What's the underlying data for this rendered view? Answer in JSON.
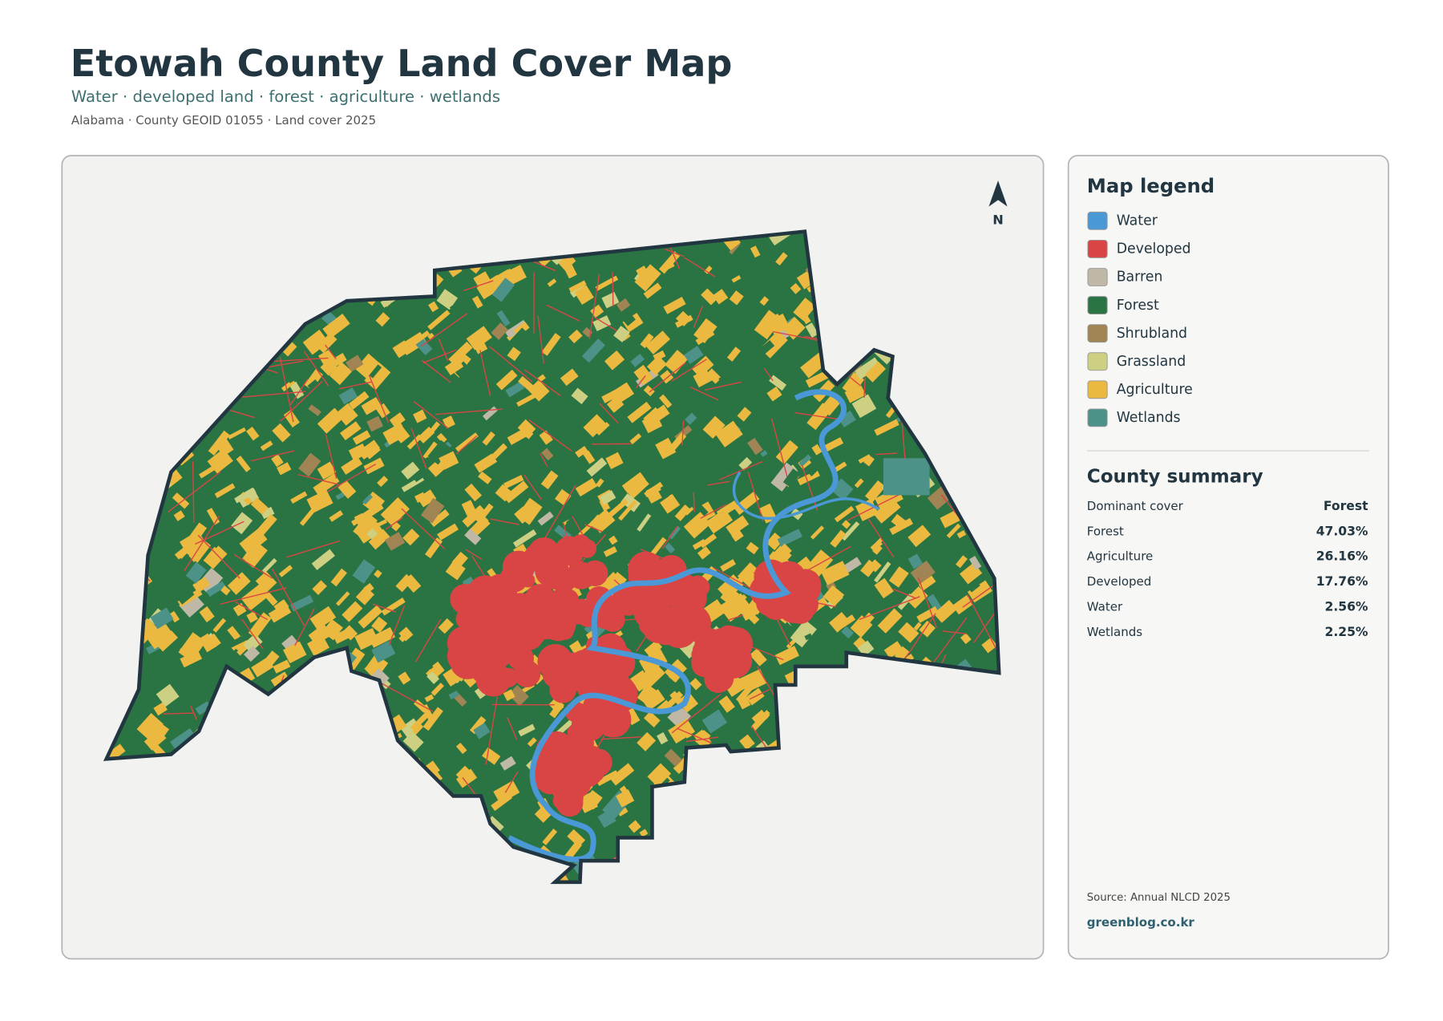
{
  "header": {
    "title": "Etowah County Land Cover Map",
    "subtitle": "Water · developed land · forest · agriculture · wetlands",
    "meta": "Alabama · County GEOID 01055 · Land cover 2025"
  },
  "map": {
    "north": "N"
  },
  "legend": {
    "title": "Map legend",
    "items": [
      {
        "label": "Water",
        "color": "#4a98d6"
      },
      {
        "label": "Developed",
        "color": "#d94545"
      },
      {
        "label": "Barren",
        "color": "#bfb8a6"
      },
      {
        "label": "Forest",
        "color": "#2a7443"
      },
      {
        "label": "Shrubland",
        "color": "#a08453"
      },
      {
        "label": "Grassland",
        "color": "#cdd083"
      },
      {
        "label": "Agriculture",
        "color": "#ebb93f"
      },
      {
        "label": "Wetlands",
        "color": "#4d9289"
      }
    ]
  },
  "summary": {
    "title": "County summary",
    "rows": [
      [
        "Dominant cover",
        "Forest"
      ],
      [
        "Forest",
        "47.03%"
      ],
      [
        "Agriculture",
        "26.16%"
      ],
      [
        "Developed",
        "17.76%"
      ],
      [
        "Water",
        "2.56%"
      ],
      [
        "Wetlands",
        "2.25%"
      ]
    ]
  },
  "footer": {
    "source": "Source: Annual NLCD 2025",
    "credit": "greenblog.co.kr"
  }
}
